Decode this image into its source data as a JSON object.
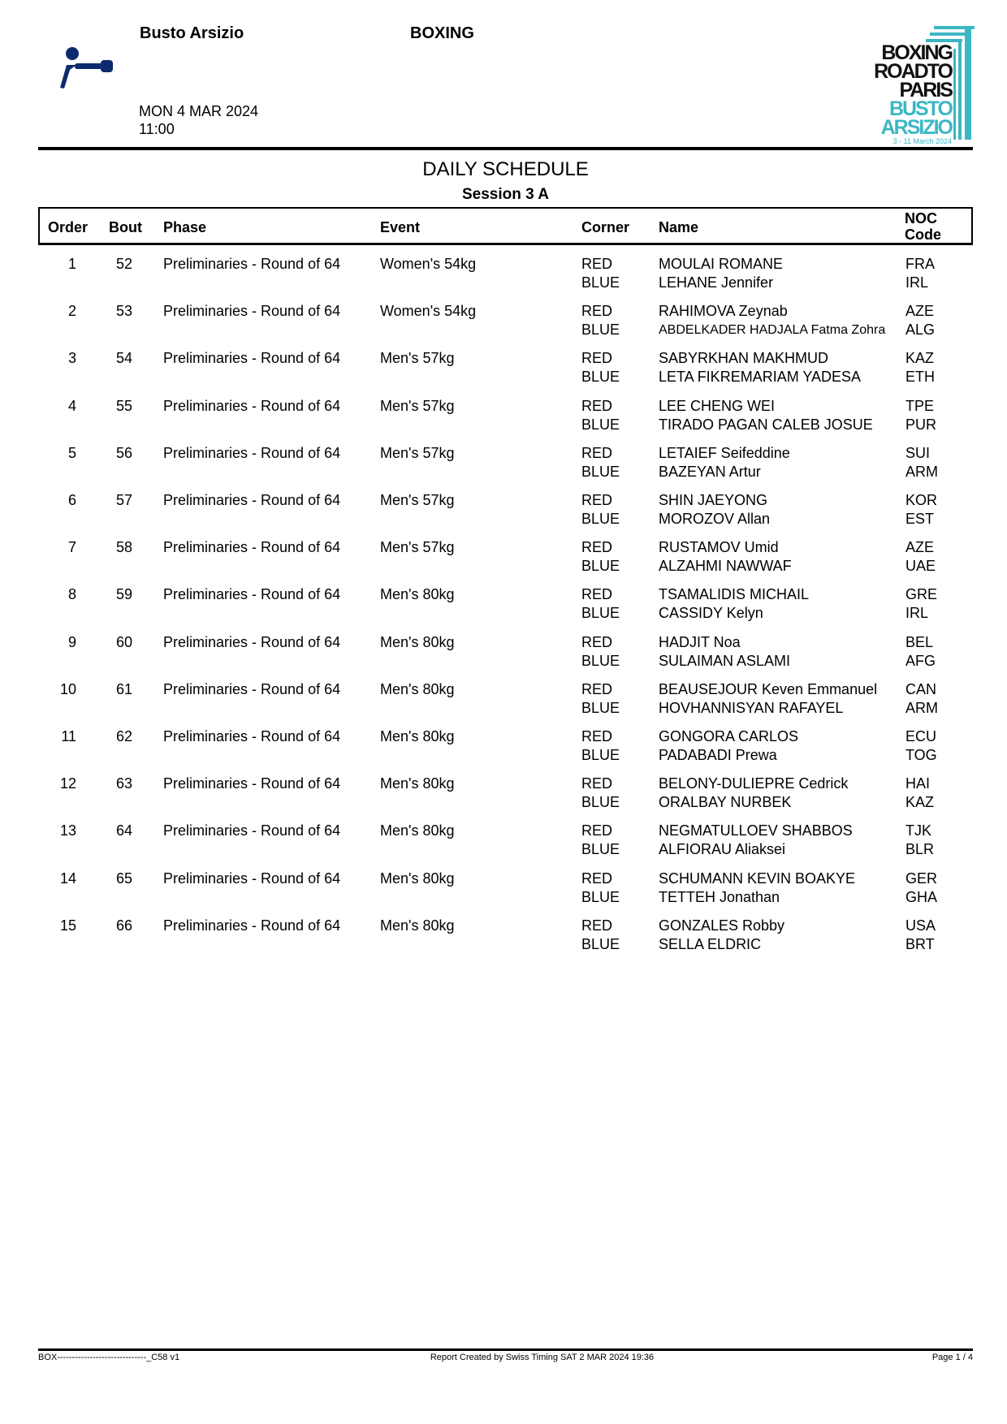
{
  "header": {
    "venue": "Busto Arsizio",
    "sport": "BOXING",
    "date": "MON 4 MAR 2024",
    "time": "11:00",
    "logo_text": [
      "BOXING",
      "ROADTO",
      "PARIS",
      "BUSTO",
      "ARSIZIO",
      "3 - 11 March 2024"
    ],
    "logo_colors": {
      "dark": "#111111",
      "teal": "#3bb7c4",
      "pictogram": "#0d2a6e"
    }
  },
  "title": "DAILY SCHEDULE",
  "session": "Session 3 A",
  "columns": {
    "order": "Order",
    "bout": "Bout",
    "phase": "Phase",
    "event": "Event",
    "corner": "Corner",
    "name": "Name",
    "noc1": "NOC",
    "noc2": "Code"
  },
  "rows": [
    {
      "order": "1",
      "bout": "52",
      "phase": "Preliminaries - Round of 64",
      "event": "Women's 54kg",
      "red": "RED",
      "blue": "BLUE",
      "red_name": "MOULAI ROMANE",
      "blue_name": "LEHANE Jennifer",
      "red_noc": "FRA",
      "blue_noc": "IRL"
    },
    {
      "order": "2",
      "bout": "53",
      "phase": "Preliminaries - Round of 64",
      "event": "Women's 54kg",
      "red": "RED",
      "blue": "BLUE",
      "red_name": "RAHIMOVA Zeynab",
      "blue_name": "ABDELKADER HADJALA Fatma Zohra",
      "red_noc": "AZE",
      "blue_noc": "ALG"
    },
    {
      "order": "3",
      "bout": "54",
      "phase": "Preliminaries - Round of 64",
      "event": "Men's 57kg",
      "red": "RED",
      "blue": "BLUE",
      "red_name": "SABYRKHAN MAKHMUD",
      "blue_name": "LETA FIKREMARIAM YADESA",
      "red_noc": "KAZ",
      "blue_noc": "ETH"
    },
    {
      "order": "4",
      "bout": "55",
      "phase": "Preliminaries - Round of 64",
      "event": "Men's 57kg",
      "red": "RED",
      "blue": "BLUE",
      "red_name": "LEE CHENG WEI",
      "blue_name": "TIRADO PAGAN CALEB JOSUE",
      "red_noc": "TPE",
      "blue_noc": "PUR"
    },
    {
      "order": "5",
      "bout": "56",
      "phase": "Preliminaries - Round of 64",
      "event": "Men's 57kg",
      "red": "RED",
      "blue": "BLUE",
      "red_name": "LETAIEF Seifeddine",
      "blue_name": "BAZEYAN Artur",
      "red_noc": "SUI",
      "blue_noc": "ARM"
    },
    {
      "order": "6",
      "bout": "57",
      "phase": "Preliminaries - Round of 64",
      "event": "Men's 57kg",
      "red": "RED",
      "blue": "BLUE",
      "red_name": "SHIN JAEYONG",
      "blue_name": "MOROZOV Allan",
      "red_noc": "KOR",
      "blue_noc": "EST"
    },
    {
      "order": "7",
      "bout": "58",
      "phase": "Preliminaries - Round of 64",
      "event": "Men's 57kg",
      "red": "RED",
      "blue": "BLUE",
      "red_name": "RUSTAMOV Umid",
      "blue_name": "ALZAHMI NAWWAF",
      "red_noc": "AZE",
      "blue_noc": "UAE"
    },
    {
      "order": "8",
      "bout": "59",
      "phase": "Preliminaries - Round of 64",
      "event": "Men's 80kg",
      "red": "RED",
      "blue": "BLUE",
      "red_name": "TSAMALIDIS MICHAIL",
      "blue_name": "CASSIDY Kelyn",
      "red_noc": "GRE",
      "blue_noc": "IRL"
    },
    {
      "order": "9",
      "bout": "60",
      "phase": "Preliminaries - Round of 64",
      "event": "Men's 80kg",
      "red": "RED",
      "blue": "BLUE",
      "red_name": "HADJIT Noa",
      "blue_name": "SULAIMAN ASLAMI",
      "red_noc": "BEL",
      "blue_noc": "AFG"
    },
    {
      "order": "10",
      "bout": "61",
      "phase": "Preliminaries - Round of 64",
      "event": "Men's 80kg",
      "red": "RED",
      "blue": "BLUE",
      "red_name": "BEAUSEJOUR Keven Emmanuel",
      "blue_name": "HOVHANNISYAN RAFAYEL",
      "red_noc": "CAN",
      "blue_noc": "ARM"
    },
    {
      "order": "11",
      "bout": "62",
      "phase": "Preliminaries - Round of 64",
      "event": "Men's 80kg",
      "red": "RED",
      "blue": "BLUE",
      "red_name": "GONGORA CARLOS",
      "blue_name": "PADABADI Prewa",
      "red_noc": "ECU",
      "blue_noc": "TOG"
    },
    {
      "order": "12",
      "bout": "63",
      "phase": "Preliminaries - Round of 64",
      "event": "Men's 80kg",
      "red": "RED",
      "blue": "BLUE",
      "red_name": "BELONY-DULIEPRE Cedrick",
      "blue_name": "ORALBAY NURBEK",
      "red_noc": "HAI",
      "blue_noc": "KAZ"
    },
    {
      "order": "13",
      "bout": "64",
      "phase": "Preliminaries - Round of 64",
      "event": "Men's 80kg",
      "red": "RED",
      "blue": "BLUE",
      "red_name": "NEGMATULLOEV SHABBOS",
      "blue_name": "ALFIORAU Aliaksei",
      "red_noc": "TJK",
      "blue_noc": "BLR"
    },
    {
      "order": "14",
      "bout": "65",
      "phase": "Preliminaries - Round of 64",
      "event": "Men's 80kg",
      "red": "RED",
      "blue": "BLUE",
      "red_name": "SCHUMANN KEVIN BOAKYE",
      "blue_name": "TETTEH Jonathan",
      "red_noc": "GER",
      "blue_noc": "GHA"
    },
    {
      "order": "15",
      "bout": "66",
      "phase": "Preliminaries - Round of 64",
      "event": "Men's 80kg",
      "red": "RED",
      "blue": "BLUE",
      "red_name": "GONZALES Robby",
      "blue_name": "SELLA ELDRIC",
      "red_noc": "USA",
      "blue_noc": "BRT"
    }
  ],
  "footer": {
    "code": "BOX------------------------------_C58 v1",
    "created": "Report Created by Swiss Timing  SAT 2 MAR 2024 19:36",
    "page": "Page 1 / 4"
  }
}
